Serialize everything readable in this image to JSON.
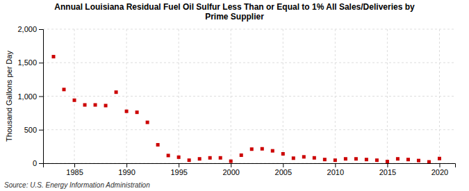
{
  "chart_data": {
    "type": "scatter",
    "title": "Annual Louisiana Residual Fuel Oil Sulfur Less Than or Equal to 1% All Sales/Deliveries by\nPrime Supplier",
    "ylabel": "Thousand Gallons per Day",
    "source": "Source: U.S. Energy Information Administration",
    "color": "#cc0000",
    "marker": "square",
    "grid": true,
    "x": [
      1983,
      1984,
      1985,
      1986,
      1987,
      1988,
      1989,
      1990,
      1991,
      1992,
      1993,
      1994,
      1995,
      1996,
      1997,
      1998,
      1999,
      2000,
      2001,
      2002,
      2003,
      2004,
      2005,
      2006,
      2007,
      2008,
      2009,
      2010,
      2011,
      2012,
      2013,
      2014,
      2015,
      2016,
      2017,
      2018,
      2019,
      2020
    ],
    "values": [
      1590,
      1100,
      940,
      870,
      870,
      860,
      1060,
      775,
      760,
      610,
      275,
      115,
      90,
      45,
      65,
      80,
      80,
      30,
      120,
      210,
      215,
      185,
      140,
      75,
      95,
      80,
      55,
      45,
      65,
      65,
      55,
      45,
      25,
      65,
      55,
      40,
      20,
      70
    ],
    "xlim": [
      1982.0,
      2021.5
    ],
    "xticks": [
      1985,
      1990,
      1995,
      2000,
      2005,
      2010,
      2015,
      2020
    ],
    "ylim": [
      0,
      2000
    ],
    "yticks": [
      0,
      500,
      {
        "value": 1000,
        "label": "1,000"
      },
      {
        "value": 1500,
        "label": "1,500"
      },
      {
        "value": 2000,
        "label": "2,000"
      }
    ]
  }
}
